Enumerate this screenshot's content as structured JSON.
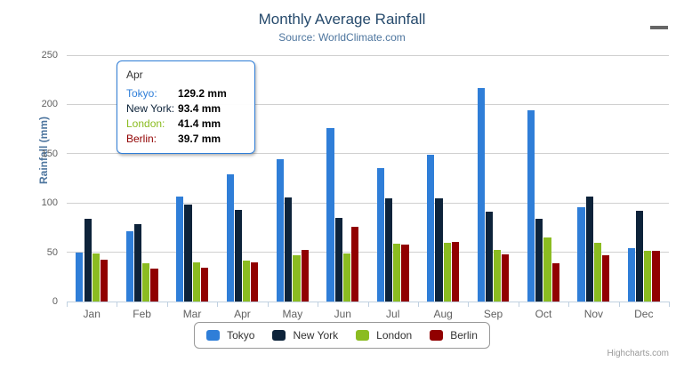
{
  "chart": {
    "title": "Monthly Average Rainfall",
    "subtitle": "Source: WorldClimate.com"
  },
  "chart_data": {
    "type": "bar",
    "title": "Monthly Average Rainfall",
    "subtitle": "Source: WorldClimate.com",
    "categories": [
      "Jan",
      "Feb",
      "Mar",
      "Apr",
      "May",
      "Jun",
      "Jul",
      "Aug",
      "Sep",
      "Oct",
      "Nov",
      "Dec"
    ],
    "series": [
      {
        "name": "Tokyo",
        "color": "#2F7ED8",
        "values": [
          49.9,
          71.5,
          106.4,
          129.2,
          144.0,
          176.0,
          135.6,
          148.5,
          216.4,
          194.1,
          95.6,
          54.4
        ]
      },
      {
        "name": "New York",
        "color": "#0D233A",
        "values": [
          83.6,
          78.8,
          98.5,
          93.4,
          106.0,
          84.5,
          105.0,
          104.3,
          91.2,
          83.5,
          106.6,
          92.3
        ]
      },
      {
        "name": "London",
        "color": "#8BBC21",
        "values": [
          48.9,
          38.8,
          39.3,
          41.4,
          47.0,
          48.3,
          59.0,
          59.6,
          52.4,
          65.2,
          59.3,
          51.2
        ]
      },
      {
        "name": "Berlin",
        "color": "#910000",
        "values": [
          42.4,
          33.2,
          34.5,
          39.7,
          52.6,
          75.5,
          57.4,
          60.4,
          47.6,
          39.1,
          46.8,
          51.1
        ]
      }
    ],
    "xlabel": "",
    "ylabel": "Rainfall (mm)",
    "ylim": [
      0,
      250
    ],
    "ytick_step": 50,
    "grid": true,
    "legend_position": "bottom"
  },
  "tooltip": {
    "header": "Apr",
    "rows": [
      {
        "label": "Tokyo:",
        "value": "129.2 mm",
        "color": "#2F7ED8"
      },
      {
        "label": "New York:",
        "value": "93.4 mm",
        "color": "#0D233A"
      },
      {
        "label": "London:",
        "value": "41.4 mm",
        "color": "#8BBC21"
      },
      {
        "label": "Berlin:",
        "value": "39.7 mm",
        "color": "#910000"
      }
    ],
    "border_color": "#2F7ED8"
  },
  "credits": {
    "label": "Highcharts.com"
  },
  "colors": {
    "title": "#274B6D",
    "subtitle": "#4D759E",
    "axis_label": "#606060",
    "axis_title": "#4D759E",
    "grid_line": "#D0D0D0",
    "axis_line": "#C0D0E0",
    "legend_text": "#333333"
  }
}
